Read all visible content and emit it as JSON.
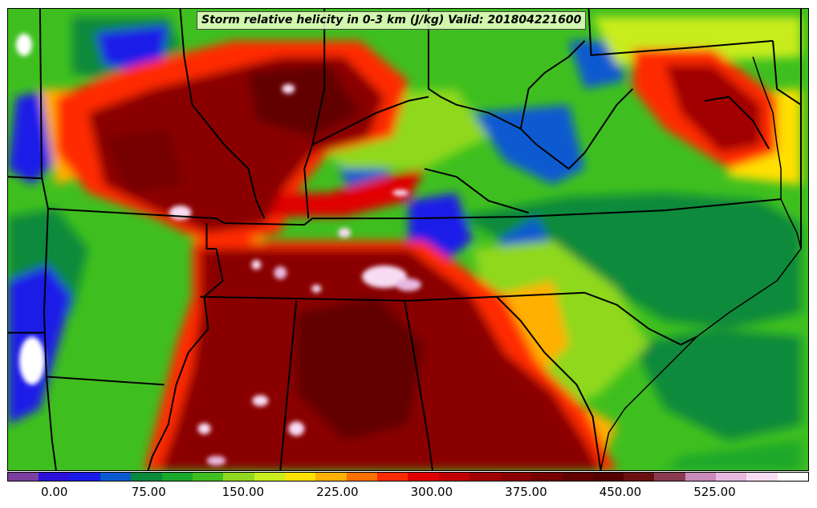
{
  "title": "Storm relative helicity in 0-3 km (J/kg) Valid: 201804221600",
  "colorbar": {
    "colors": [
      "#7b3f9e",
      "#2a10d8",
      "#1a1ae8",
      "#0a5ad0",
      "#0a8a3a",
      "#1aa82a",
      "#3fbf1f",
      "#8fd81f",
      "#c8ec1e",
      "#ffe000",
      "#ffb000",
      "#ff7000",
      "#ff2a00",
      "#e00000",
      "#c00000",
      "#a00000",
      "#8a0000",
      "#760000",
      "#620000",
      "#520000",
      "#6a1010",
      "#8a3a50",
      "#c88ab8",
      "#e8b8e0",
      "#f8dcf4",
      "#ffffff"
    ],
    "tick_labels": [
      "0.00",
      "75.00",
      "150.00",
      "225.00",
      "300.00",
      "375.00",
      "450.00",
      "525.00"
    ]
  },
  "map": {
    "region": "Southeastern United States",
    "field": "storm relative helicity 0-3 km",
    "color_scale_min": -37.5,
    "color_scale_max": 600,
    "color_scale_interval": 25
  }
}
